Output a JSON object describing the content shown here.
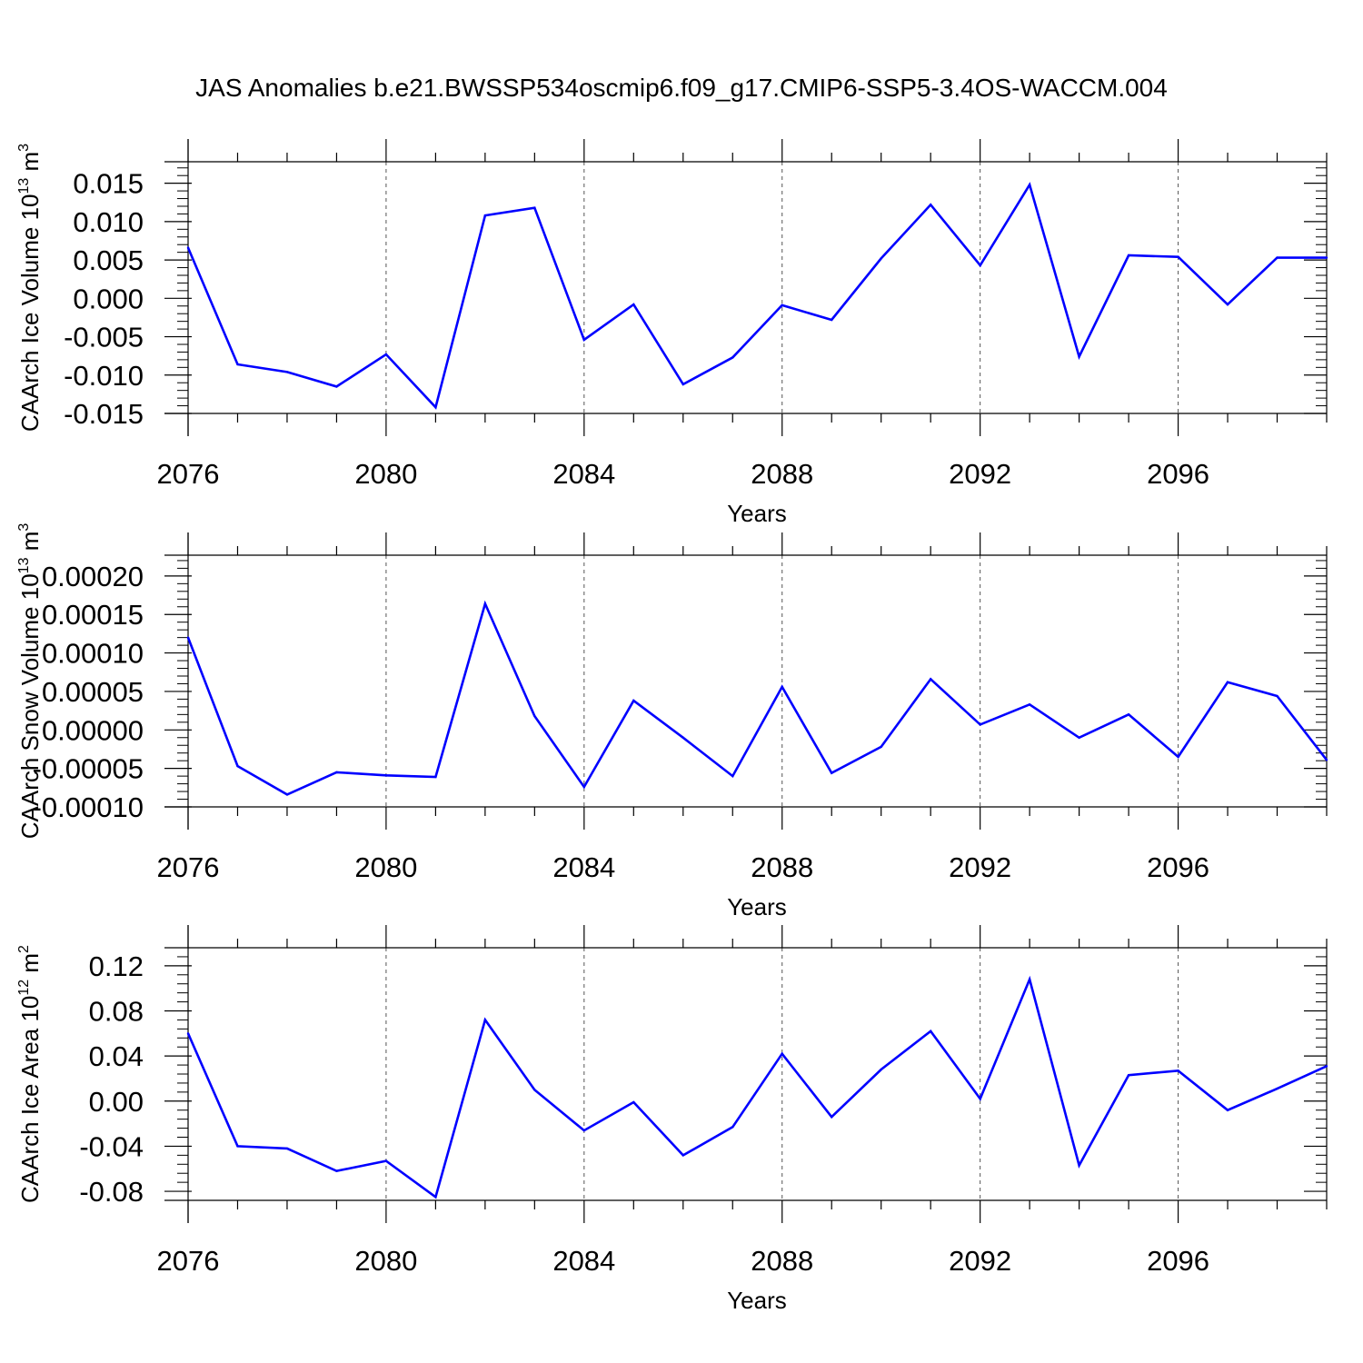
{
  "title": "JAS Anomalies b.e21.BWSSP534oscmip6.f09_g17.CMIP6-SSP5-3.4OS-WACCM.004",
  "colors": {
    "line": "#0000ff",
    "axis": "#000000",
    "grid": "#555555",
    "background": "#ffffff"
  },
  "chart_data": [
    {
      "type": "line",
      "xlabel": "Years",
      "ylabel": {
        "main": "CAArch Ice Volume 10",
        "exponent": "13",
        "unit": " m",
        "unit_exponent": "3"
      },
      "x": [
        2076,
        2077,
        2078,
        2079,
        2080,
        2081,
        2082,
        2083,
        2084,
        2085,
        2086,
        2087,
        2088,
        2089,
        2090,
        2091,
        2092,
        2093,
        2094,
        2095,
        2096,
        2097,
        2098,
        2099
      ],
      "series": [
        {
          "values": [
            0.0066,
            -0.0086,
            -0.0096,
            -0.0115,
            -0.0073,
            -0.0142,
            0.0108,
            0.0118,
            -0.0054,
            -0.0008,
            -0.0112,
            -0.0077,
            -0.0009,
            -0.0028,
            0.0052,
            0.0122,
            0.0043,
            0.0148,
            -0.0076,
            0.0056,
            0.0054,
            -0.0008,
            0.0053,
            0.0053
          ]
        }
      ],
      "xlim": [
        2076,
        2099
      ],
      "ylim": [
        -0.015,
        0.0178
      ],
      "xticks": [
        2076,
        2080,
        2084,
        2088,
        2092,
        2096
      ],
      "xtick_labels": [
        "2076",
        "2080",
        "2084",
        "2088",
        "2092",
        "2096"
      ],
      "yticks": [
        -0.015,
        -0.01,
        -0.005,
        0.0,
        0.005,
        0.01,
        0.015
      ],
      "ytick_labels": [
        "-0.015",
        "-0.010",
        "-0.005",
        "0.000",
        "0.005",
        "0.010",
        "0.015"
      ],
      "grid": "vertical dashed at major x ticks"
    },
    {
      "type": "line",
      "xlabel": "Years",
      "ylabel": {
        "main": "CAArch Snow Volume 10",
        "exponent": "13",
        "unit": " m",
        "unit_exponent": "3"
      },
      "x": [
        2076,
        2077,
        2078,
        2079,
        2080,
        2081,
        2082,
        2083,
        2084,
        2085,
        2086,
        2087,
        2088,
        2089,
        2090,
        2091,
        2092,
        2093,
        2094,
        2095,
        2096,
        2097,
        2098,
        2099
      ],
      "series": [
        {
          "values": [
            0.00012,
            -4.7e-05,
            -8.4e-05,
            -5.5e-05,
            -5.9e-05,
            -6.1e-05,
            0.000164,
            1.8e-05,
            -7.4e-05,
            3.8e-05,
            -1e-05,
            -6e-05,
            5.6e-05,
            -5.6e-05,
            -2.2e-05,
            6.6e-05,
            7e-06,
            3.3e-05,
            -1e-05,
            2e-05,
            -3.5e-05,
            6.2e-05,
            4.4e-05,
            -3.9e-05
          ]
        }
      ],
      "xlim": [
        2076,
        2099
      ],
      "ylim": [
        -0.0001,
        0.000227
      ],
      "xticks": [
        2076,
        2080,
        2084,
        2088,
        2092,
        2096
      ],
      "xtick_labels": [
        "2076",
        "2080",
        "2084",
        "2088",
        "2092",
        "2096"
      ],
      "yticks": [
        -0.0001,
        -5e-05,
        0.0,
        5e-05,
        0.0001,
        0.00015,
        0.0002
      ],
      "ytick_labels": [
        "-0.00010",
        "-0.00005",
        "0.00000",
        "0.00005",
        "0.00010",
        "0.00015",
        "0.00020"
      ],
      "grid": "vertical dashed at major x ticks"
    },
    {
      "type": "line",
      "xlabel": "Years",
      "ylabel": {
        "main": "CAArch Ice Area 10",
        "exponent": "12",
        "unit": " m",
        "unit_exponent": "2"
      },
      "x": [
        2076,
        2077,
        2078,
        2079,
        2080,
        2081,
        2082,
        2083,
        2084,
        2085,
        2086,
        2087,
        2088,
        2089,
        2090,
        2091,
        2092,
        2093,
        2094,
        2095,
        2096,
        2097,
        2098,
        2099
      ],
      "series": [
        {
          "values": [
            0.06,
            -0.04,
            -0.042,
            -0.062,
            -0.053,
            -0.085,
            0.072,
            0.01,
            -0.026,
            -0.001,
            -0.048,
            -0.023,
            0.042,
            -0.014,
            0.028,
            0.062,
            0.002,
            0.108,
            -0.057,
            0.023,
            0.027,
            -0.008,
            0.011,
            0.031
          ]
        }
      ],
      "xlim": [
        2076,
        2099
      ],
      "ylim": [
        -0.088,
        0.136
      ],
      "xticks": [
        2076,
        2080,
        2084,
        2088,
        2092,
        2096
      ],
      "xtick_labels": [
        "2076",
        "2080",
        "2084",
        "2088",
        "2092",
        "2096"
      ],
      "yticks": [
        -0.08,
        -0.04,
        0.0,
        0.04,
        0.08,
        0.12
      ],
      "ytick_labels": [
        "-0.08",
        "-0.04",
        "0.00",
        "0.04",
        "0.08",
        "0.12"
      ],
      "grid": "vertical dashed at major x ticks"
    }
  ]
}
